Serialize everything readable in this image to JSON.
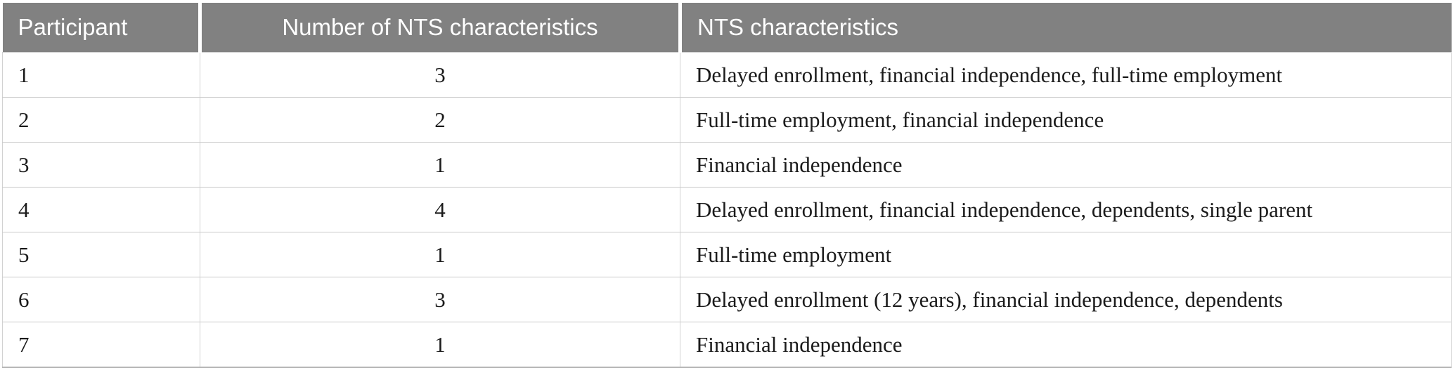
{
  "table": {
    "columns": [
      {
        "label": "Participant"
      },
      {
        "label": "Number of NTS characteristics"
      },
      {
        "label": "NTS characteristics"
      }
    ],
    "rows": [
      {
        "participant": "1",
        "count": "3",
        "characteristics": "Delayed enrollment, financial independence, full-time employment"
      },
      {
        "participant": "2",
        "count": "2",
        "characteristics": "Full-time employment, financial independence"
      },
      {
        "participant": "3",
        "count": "1",
        "characteristics": "Financial independence"
      },
      {
        "participant": "4",
        "count": "4",
        "characteristics": "Delayed enrollment, financial independence, dependents, single parent"
      },
      {
        "participant": "5",
        "count": "1",
        "characteristics": "Full-time employment"
      },
      {
        "participant": "6",
        "count": "3",
        "characteristics": "Delayed enrollment (12 years), financial independence, dependents"
      },
      {
        "participant": "7",
        "count": "1",
        "characteristics": "Financial independence"
      }
    ]
  },
  "colors": {
    "header_bg": "#818181",
    "header_text": "#ffffff",
    "body_text": "#1b1b1b",
    "row_divider": "#c9c9c9",
    "column_divider": "#d2d2d2",
    "bottom_border": "#b3b3b3"
  }
}
